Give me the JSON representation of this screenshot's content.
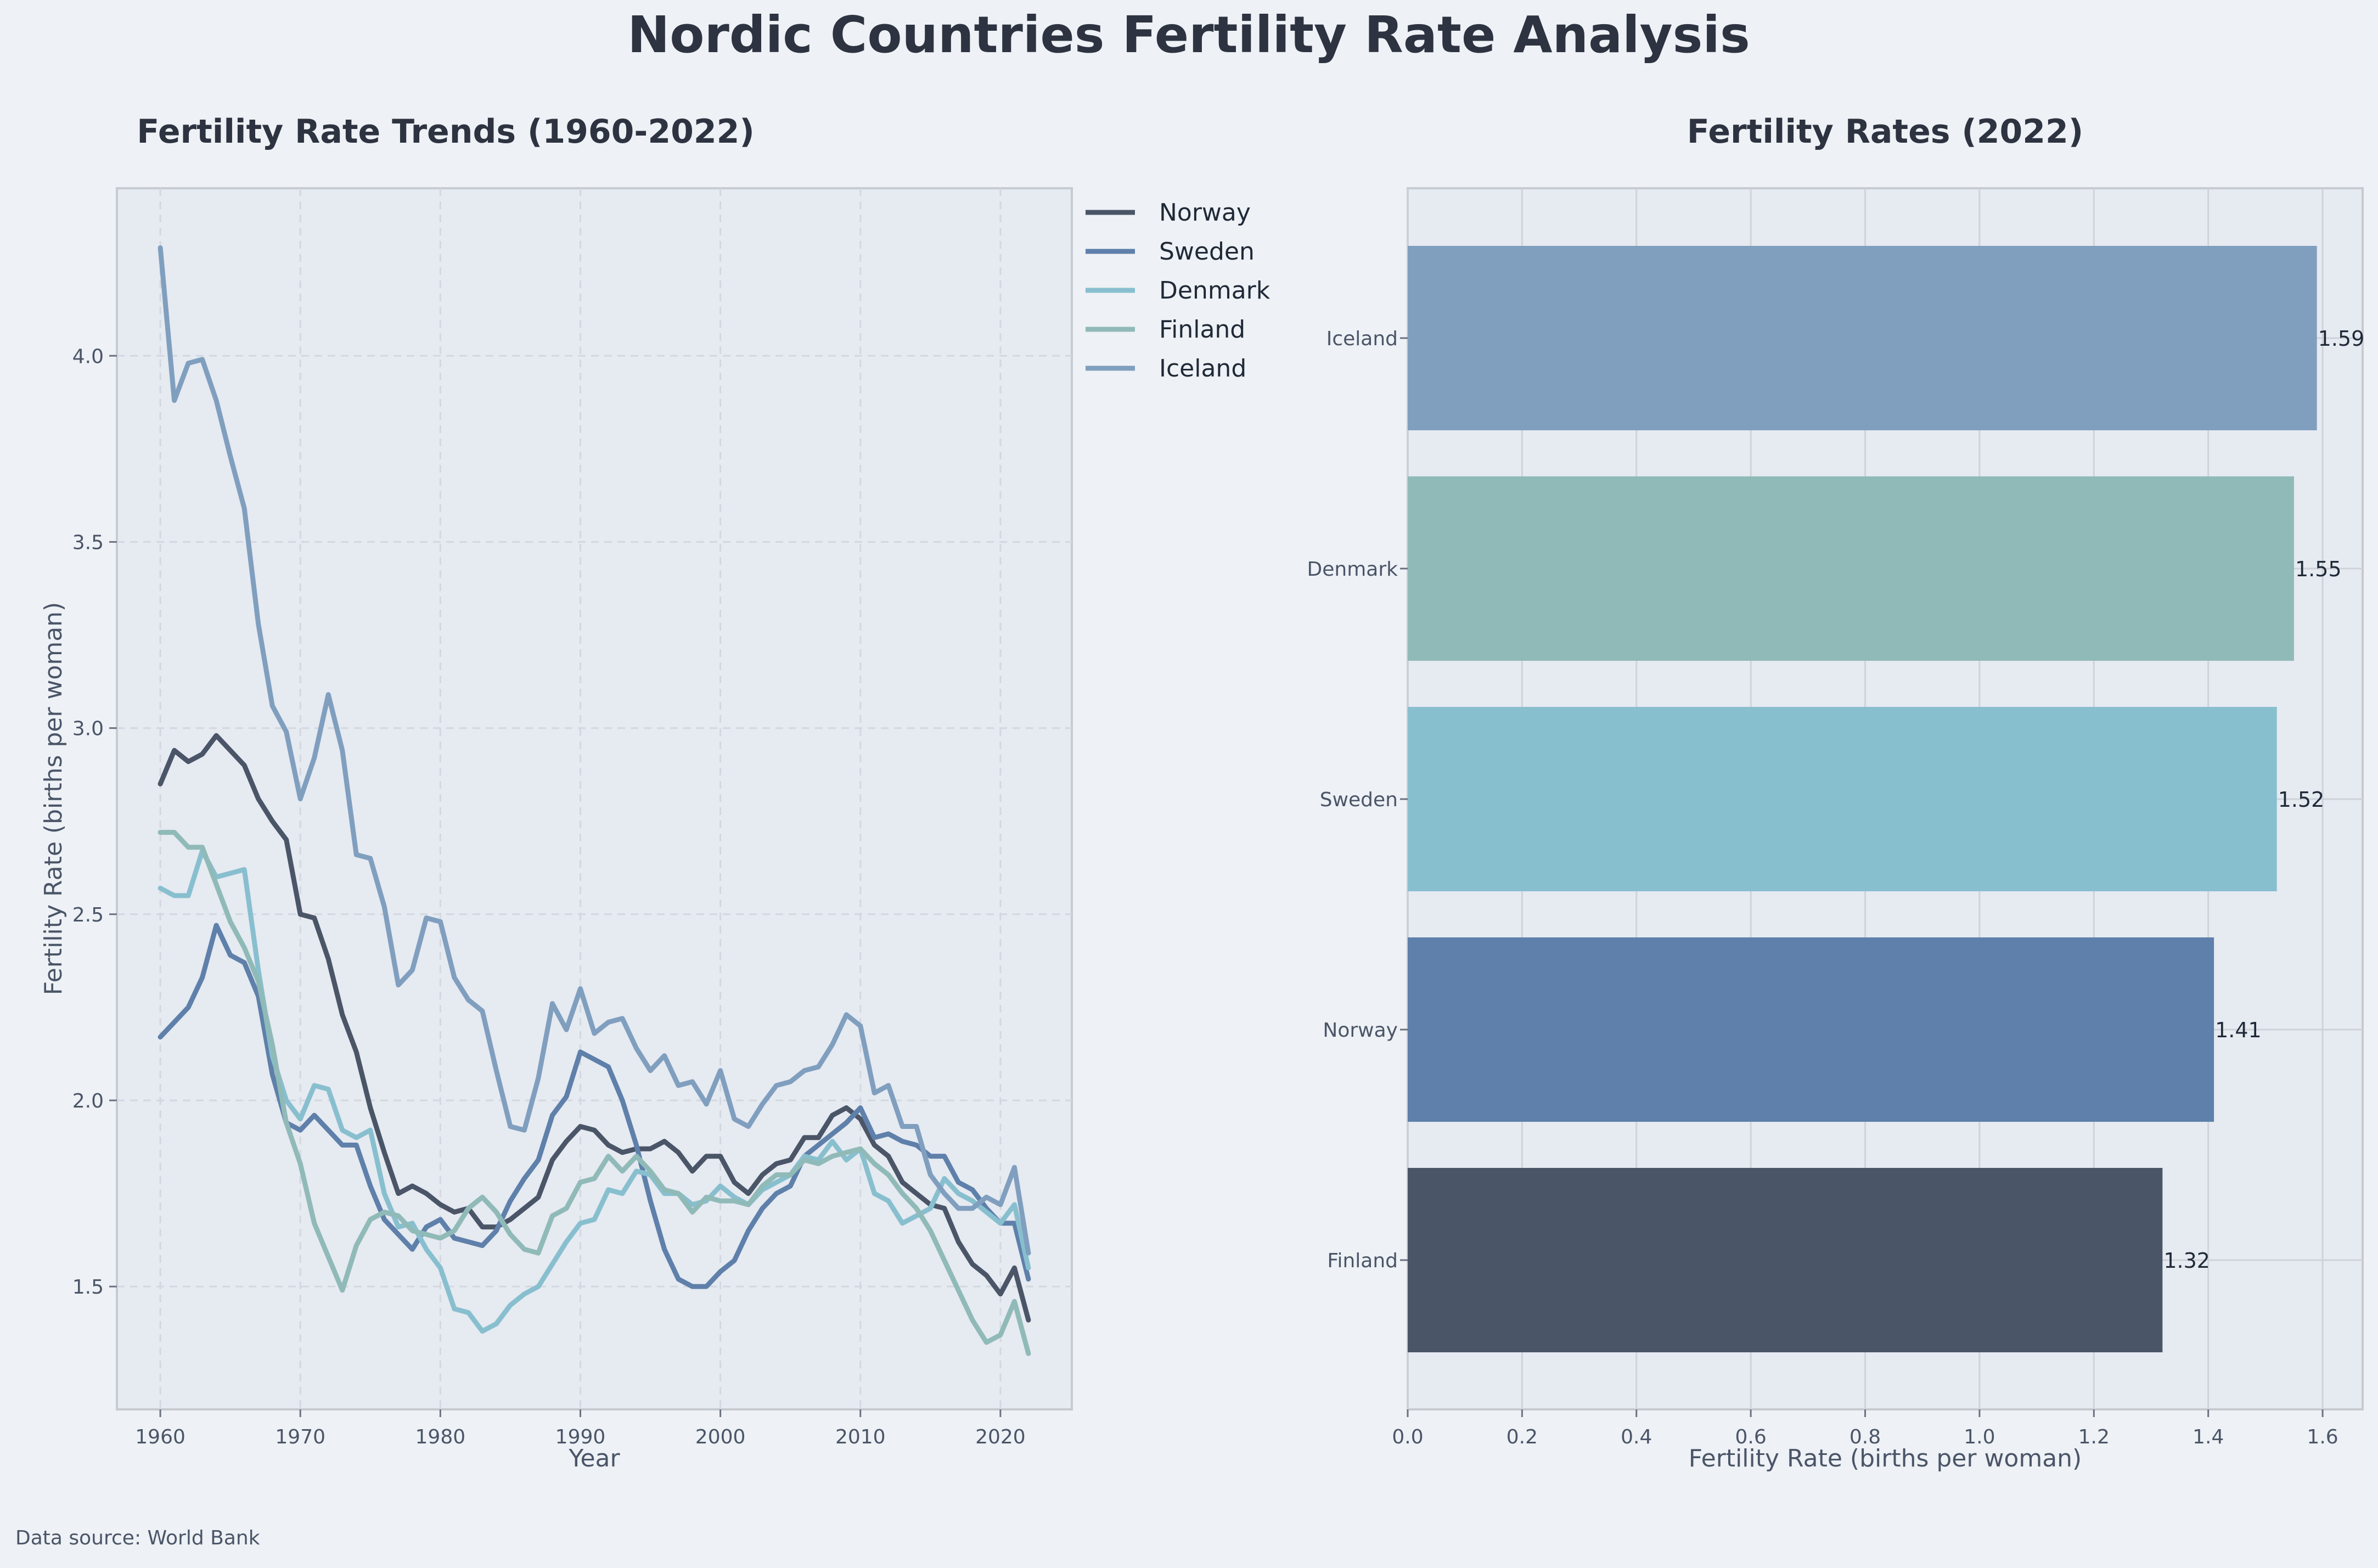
{
  "title": "Nordic Countries Fertility Rate Analysis",
  "source_note": "Data source: World Bank",
  "colors": {
    "background": "#eef1f5",
    "plot_bg": "#e6eaf1",
    "title": "#2d3340",
    "norway": "#4b5568",
    "sweden": "#5e80aa",
    "denmark": "#88bfcf",
    "finland": "#90bab8",
    "iceland": "#809fbf"
  },
  "chart_data": [
    {
      "type": "line",
      "title": "Fertility Rate Trends (1960-2022)",
      "xlabel": "Year",
      "ylabel": "Fertility Rate (births per woman)",
      "xlim": [
        1956.9,
        2025.1
      ],
      "ylim": [
        1.17,
        4.45
      ],
      "xticks": [
        1960,
        1970,
        1980,
        1990,
        2000,
        2010,
        2020
      ],
      "yticks": [
        1.5,
        2.0,
        2.5,
        3.0,
        3.5,
        4.0
      ],
      "ytick_labels": [
        "1.5",
        "2.0",
        "2.5",
        "3.0",
        "3.5",
        "4.0"
      ],
      "grid": true,
      "legend": "outside-top-right",
      "x": [
        1960,
        1961,
        1962,
        1963,
        1964,
        1965,
        1966,
        1967,
        1968,
        1969,
        1970,
        1971,
        1972,
        1973,
        1974,
        1975,
        1976,
        1977,
        1978,
        1979,
        1980,
        1981,
        1982,
        1983,
        1984,
        1985,
        1986,
        1987,
        1988,
        1989,
        1990,
        1991,
        1992,
        1993,
        1994,
        1995,
        1996,
        1997,
        1998,
        1999,
        2000,
        2001,
        2002,
        2003,
        2004,
        2005,
        2006,
        2007,
        2008,
        2009,
        2010,
        2011,
        2012,
        2013,
        2014,
        2015,
        2016,
        2017,
        2018,
        2019,
        2020,
        2021,
        2022
      ],
      "series": [
        {
          "name": "Norway",
          "color": "#4b5568",
          "values": [
            2.85,
            2.94,
            2.91,
            2.93,
            2.98,
            2.94,
            2.9,
            2.81,
            2.75,
            2.7,
            2.5,
            2.49,
            2.38,
            2.23,
            2.13,
            1.98,
            1.86,
            1.75,
            1.77,
            1.75,
            1.72,
            1.7,
            1.71,
            1.66,
            1.66,
            1.68,
            1.71,
            1.74,
            1.84,
            1.89,
            1.93,
            1.92,
            1.88,
            1.86,
            1.87,
            1.87,
            1.89,
            1.86,
            1.81,
            1.85,
            1.85,
            1.78,
            1.75,
            1.8,
            1.83,
            1.84,
            1.9,
            1.9,
            1.96,
            1.98,
            1.95,
            1.88,
            1.85,
            1.78,
            1.75,
            1.72,
            1.71,
            1.62,
            1.56,
            1.53,
            1.48,
            1.55,
            1.41
          ]
        },
        {
          "name": "Sweden",
          "color": "#5e80aa",
          "values": [
            2.17,
            2.21,
            2.25,
            2.33,
            2.47,
            2.39,
            2.37,
            2.28,
            2.07,
            1.94,
            1.92,
            1.96,
            1.92,
            1.88,
            1.88,
            1.77,
            1.68,
            1.64,
            1.6,
            1.66,
            1.68,
            1.63,
            1.62,
            1.61,
            1.65,
            1.73,
            1.79,
            1.84,
            1.96,
            2.01,
            2.13,
            2.11,
            2.09,
            2.0,
            1.88,
            1.73,
            1.6,
            1.52,
            1.5,
            1.5,
            1.54,
            1.57,
            1.65,
            1.71,
            1.75,
            1.77,
            1.85,
            1.88,
            1.91,
            1.94,
            1.98,
            1.9,
            1.91,
            1.89,
            1.88,
            1.85,
            1.85,
            1.78,
            1.76,
            1.71,
            1.67,
            1.67,
            1.52
          ]
        },
        {
          "name": "Denmark",
          "color": "#88bfcf",
          "values": [
            2.57,
            2.55,
            2.55,
            2.67,
            2.6,
            2.61,
            2.62,
            2.35,
            2.12,
            2.0,
            1.95,
            2.04,
            2.03,
            1.92,
            1.9,
            1.92,
            1.75,
            1.66,
            1.67,
            1.6,
            1.55,
            1.44,
            1.43,
            1.38,
            1.4,
            1.45,
            1.48,
            1.5,
            1.56,
            1.62,
            1.67,
            1.68,
            1.76,
            1.75,
            1.81,
            1.8,
            1.75,
            1.75,
            1.72,
            1.73,
            1.77,
            1.74,
            1.72,
            1.76,
            1.78,
            1.8,
            1.85,
            1.84,
            1.89,
            1.84,
            1.87,
            1.75,
            1.73,
            1.67,
            1.69,
            1.71,
            1.79,
            1.75,
            1.73,
            1.7,
            1.67,
            1.72,
            1.55
          ]
        },
        {
          "name": "Finland",
          "color": "#90bab8",
          "values": [
            2.72,
            2.72,
            2.68,
            2.68,
            2.58,
            2.48,
            2.41,
            2.32,
            2.15,
            1.94,
            1.83,
            1.67,
            1.58,
            1.49,
            1.61,
            1.68,
            1.7,
            1.69,
            1.65,
            1.64,
            1.63,
            1.65,
            1.71,
            1.74,
            1.7,
            1.64,
            1.6,
            1.59,
            1.69,
            1.71,
            1.78,
            1.79,
            1.85,
            1.81,
            1.85,
            1.81,
            1.76,
            1.75,
            1.7,
            1.74,
            1.73,
            1.73,
            1.72,
            1.77,
            1.8,
            1.8,
            1.84,
            1.83,
            1.85,
            1.86,
            1.87,
            1.83,
            1.8,
            1.75,
            1.71,
            1.65,
            1.57,
            1.49,
            1.41,
            1.35,
            1.37,
            1.46,
            1.32
          ]
        },
        {
          "name": "Iceland",
          "color": "#809fbf",
          "values": [
            4.29,
            3.88,
            3.98,
            3.99,
            3.88,
            3.73,
            3.59,
            3.28,
            3.06,
            2.99,
            2.81,
            2.92,
            3.09,
            2.94,
            2.66,
            2.65,
            2.52,
            2.31,
            2.35,
            2.49,
            2.48,
            2.33,
            2.27,
            2.24,
            2.08,
            1.93,
            1.92,
            2.06,
            2.26,
            2.19,
            2.3,
            2.18,
            2.21,
            2.22,
            2.14,
            2.08,
            2.12,
            2.04,
            2.05,
            1.99,
            2.08,
            1.95,
            1.93,
            1.99,
            2.04,
            2.05,
            2.08,
            2.09,
            2.15,
            2.23,
            2.2,
            2.02,
            2.04,
            1.93,
            1.93,
            1.8,
            1.75,
            1.71,
            1.71,
            1.74,
            1.72,
            1.82,
            1.59
          ]
        }
      ]
    },
    {
      "type": "bar",
      "orientation": "horizontal",
      "title": "Fertility Rates (2022)",
      "xlabel": "Fertility Rate (births per woman)",
      "ylabel": "",
      "xlim": [
        0,
        1.67
      ],
      "xticks": [
        0.0,
        0.2,
        0.4,
        0.6,
        0.8,
        1.0,
        1.2,
        1.4,
        1.6
      ],
      "xtick_labels": [
        "0.0",
        "0.2",
        "0.4",
        "0.6",
        "0.8",
        "1.0",
        "1.2",
        "1.4",
        "1.6"
      ],
      "grid": true,
      "categories": [
        "Iceland",
        "Denmark",
        "Sweden",
        "Norway",
        "Finland"
      ],
      "values": [
        1.59,
        1.55,
        1.52,
        1.41,
        1.32
      ],
      "value_labels": [
        "1.59",
        "1.55",
        "1.52",
        "1.41",
        "1.32"
      ],
      "bar_colors": [
        "#809fbf",
        "#90bab8",
        "#88bfcf",
        "#5e80aa",
        "#4b5568"
      ]
    }
  ]
}
